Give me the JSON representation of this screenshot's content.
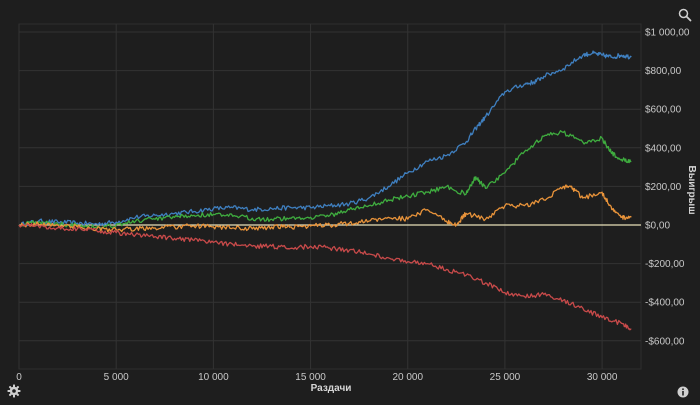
{
  "icons": {
    "zoom": "magnifier-icon",
    "settings": "gear-icon",
    "info": "info-icon"
  },
  "chart_data": {
    "type": "line",
    "title": "",
    "xlabel": "Раздачи",
    "ylabel": "Выигрыш",
    "xlim": [
      0,
      32000
    ],
    "ylim": [
      -620,
      1000
    ],
    "grid": true,
    "legend": "none",
    "x_ticks": [
      0,
      5000,
      10000,
      15000,
      20000,
      25000,
      30000
    ],
    "x_tick_labels": [
      "0",
      "5 000",
      "10 000",
      "15 000",
      "20 000",
      "25 000",
      "30 000"
    ],
    "y_ticks": [
      1000,
      800,
      600,
      400,
      200,
      0,
      -200,
      -400,
      -600
    ],
    "y_tick_labels": [
      "$1 000,00",
      "$800,00",
      "$600,00",
      "$400,00",
      "$200,00",
      "$0,00",
      "-$200,00",
      "-$400,00",
      "-$600,00"
    ],
    "zero_line_color": "#e8e0b8",
    "series": [
      {
        "color": "#3f7fbf",
        "x": [
          0,
          1000,
          2000,
          3000,
          4000,
          5000,
          6000,
          7000,
          8000,
          9000,
          10000,
          11000,
          12000,
          13000,
          14000,
          15000,
          16000,
          17000,
          18000,
          19000,
          20000,
          21000,
          22000,
          23000,
          23500,
          24000,
          25000,
          26000,
          26500,
          27000,
          28000,
          29000,
          29500,
          30000,
          30500,
          31000,
          31500
        ],
        "y": [
          0,
          20,
          15,
          10,
          5,
          15,
          40,
          50,
          60,
          70,
          85,
          90,
          80,
          85,
          90,
          90,
          100,
          110,
          140,
          200,
          270,
          330,
          360,
          430,
          500,
          560,
          690,
          730,
          740,
          770,
          810,
          880,
          890,
          880,
          870,
          880,
          870
        ]
      },
      {
        "color": "#3fad3f",
        "x": [
          0,
          1000,
          2000,
          3000,
          4000,
          5000,
          6000,
          7000,
          8000,
          9000,
          10000,
          11000,
          12000,
          13000,
          14000,
          15000,
          16000,
          17000,
          18000,
          19000,
          20000,
          21000,
          22000,
          23000,
          23500,
          24000,
          25000,
          26000,
          27000,
          28000,
          29000,
          30000,
          30500,
          31000,
          31500
        ],
        "y": [
          0,
          15,
          5,
          0,
          -10,
          0,
          20,
          30,
          40,
          50,
          55,
          45,
          35,
          30,
          35,
          40,
          50,
          80,
          100,
          130,
          150,
          170,
          200,
          160,
          250,
          190,
          270,
          380,
          460,
          480,
          430,
          450,
          370,
          340,
          330
        ]
      },
      {
        "color": "#e8933a",
        "x": [
          0,
          1000,
          2000,
          3000,
          4000,
          5000,
          6000,
          7000,
          8000,
          9000,
          10000,
          11000,
          12000,
          13000,
          14000,
          15000,
          16000,
          17000,
          18000,
          19000,
          20000,
          21000,
          22000,
          22500,
          23000,
          24000,
          25000,
          26000,
          27000,
          28000,
          28500,
          29000,
          30000,
          30500,
          31000,
          31500
        ],
        "y": [
          0,
          5,
          0,
          -10,
          -20,
          -25,
          -20,
          -15,
          -10,
          -5,
          -10,
          -15,
          -20,
          -10,
          -10,
          -5,
          0,
          10,
          20,
          40,
          30,
          80,
          20,
          0,
          60,
          30,
          100,
          100,
          130,
          200,
          190,
          140,
          170,
          80,
          40,
          40
        ]
      },
      {
        "color": "#c84a4a",
        "x": [
          0,
          1000,
          2000,
          3000,
          4000,
          5000,
          6000,
          7000,
          8000,
          9000,
          10000,
          11000,
          12000,
          13000,
          14000,
          15000,
          16000,
          17000,
          18000,
          19000,
          20000,
          21000,
          22000,
          23000,
          24000,
          25000,
          26000,
          27000,
          28000,
          29000,
          30000,
          31000,
          31500
        ],
        "y": [
          0,
          -5,
          -15,
          -20,
          -30,
          -40,
          -50,
          -60,
          -70,
          -80,
          -90,
          -100,
          -110,
          -110,
          -120,
          -110,
          -120,
          -130,
          -150,
          -170,
          -190,
          -200,
          -230,
          -260,
          -300,
          -350,
          -370,
          -360,
          -390,
          -430,
          -480,
          -510,
          -540
        ]
      }
    ]
  }
}
